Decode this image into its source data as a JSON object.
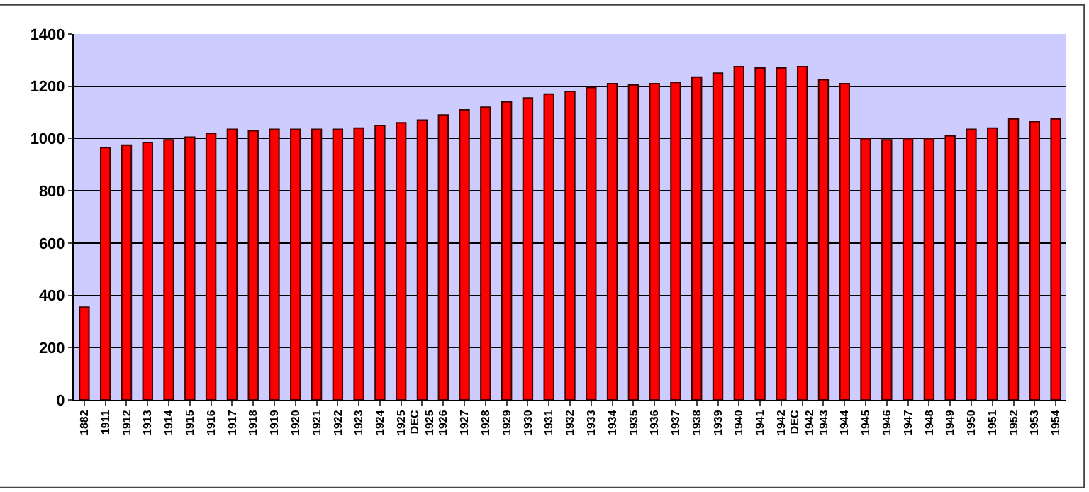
{
  "chart_data": {
    "type": "bar",
    "categories": [
      "1882",
      "1911",
      "1912",
      "1913",
      "1914",
      "1915",
      "1916",
      "1917",
      "1918",
      "1919",
      "1920",
      "1921",
      "1922",
      "1923",
      "1924",
      "1925",
      "DEC 1925",
      "1926",
      "1927",
      "1928",
      "1929",
      "1930",
      "1931",
      "1932",
      "1933",
      "1934",
      "1935",
      "1936",
      "1937",
      "1938",
      "1939",
      "1940",
      "1941",
      "1942",
      "DEC 1942",
      "1943",
      "1944",
      "1945",
      "1946",
      "1947",
      "1948",
      "1949",
      "1950",
      "1951",
      "1952",
      "1953",
      "1954"
    ],
    "values": [
      355,
      965,
      975,
      985,
      995,
      1005,
      1020,
      1035,
      1030,
      1035,
      1035,
      1035,
      1035,
      1040,
      1050,
      1060,
      1070,
      1090,
      1110,
      1120,
      1140,
      1155,
      1170,
      1180,
      1195,
      1210,
      1205,
      1210,
      1215,
      1235,
      1250,
      1275,
      1270,
      1270,
      1275,
      1225,
      1210,
      1000,
      995,
      1000,
      1000,
      1010,
      1035,
      1040,
      1075,
      1065,
      1075
    ],
    "color": "#ff0000",
    "ylim": [
      0,
      1400
    ],
    "yticks": [
      0,
      200,
      400,
      600,
      800,
      1000,
      1200,
      1400
    ],
    "grid": "y"
  }
}
